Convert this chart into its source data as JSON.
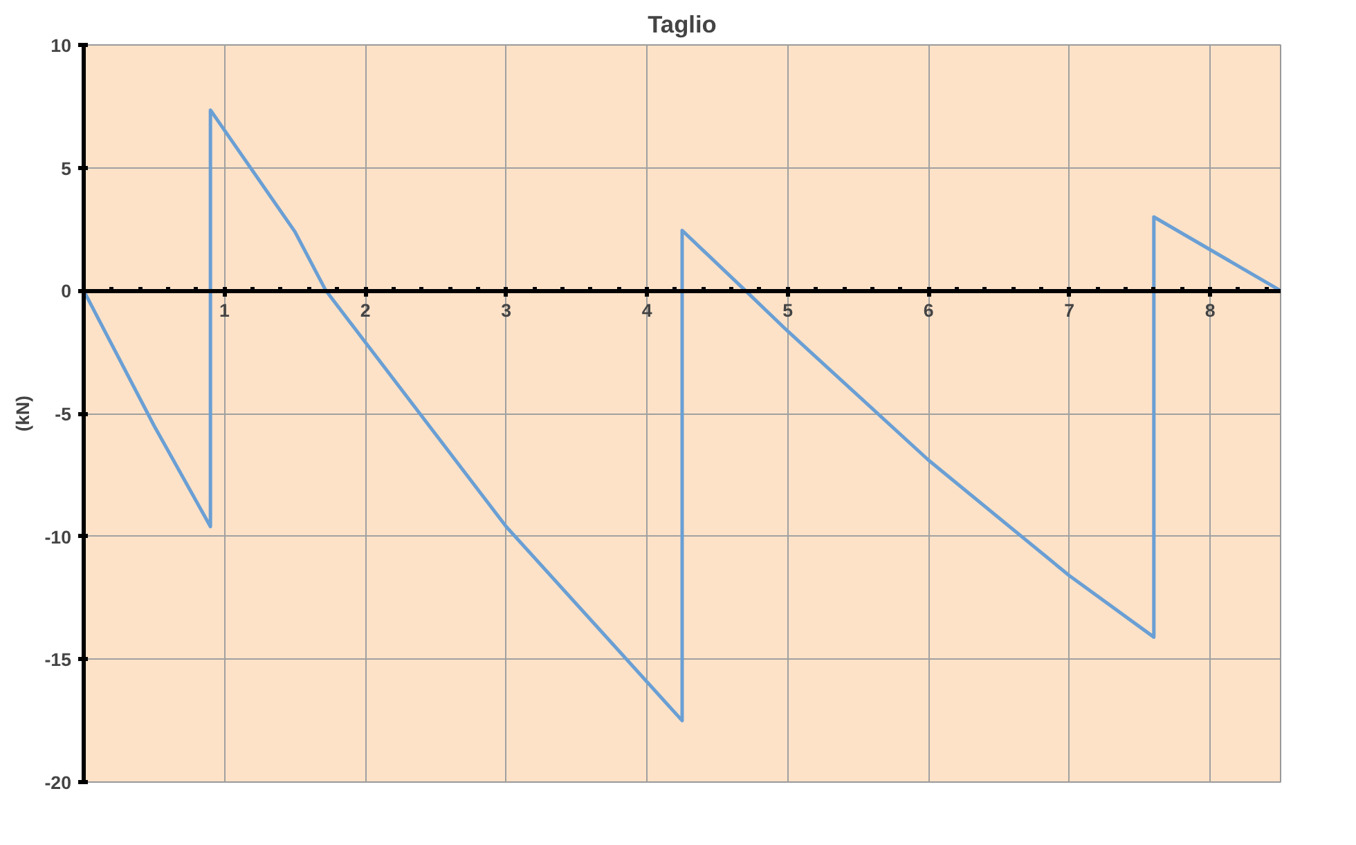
{
  "chart_data": {
    "type": "line",
    "title": "Taglio",
    "ylabel": "(kN)",
    "x": [
      0,
      0.5,
      0.9,
      0.9,
      1.5,
      1.72,
      2,
      3,
      4.25,
      4.25,
      4.7,
      5,
      6,
      7,
      7.6,
      7.6,
      8.5
    ],
    "series": [
      {
        "color": "#6a9fd4",
        "values": [
          0,
          -5.5,
          -9.6,
          7.35,
          2.4,
          0,
          -2.1,
          -9.6,
          -17.5,
          2.45,
          0,
          -1.65,
          -6.9,
          -11.6,
          -14.1,
          3.0,
          0
        ]
      }
    ],
    "xlim": [
      0,
      8.5
    ],
    "ylim": [
      -20,
      10
    ],
    "xticks": [
      {
        "value": 0,
        "label": null
      },
      {
        "value": 0.2,
        "label": null
      },
      {
        "value": 0.4,
        "label": null
      },
      {
        "value": 0.6,
        "label": null
      },
      {
        "value": 0.8,
        "label": null
      },
      1,
      {
        "value": 1.2,
        "label": null
      },
      {
        "value": 1.4,
        "label": null
      },
      {
        "value": 1.6,
        "label": null
      },
      {
        "value": 1.8,
        "label": null
      },
      2,
      {
        "value": 2.2,
        "label": null
      },
      {
        "value": 2.4,
        "label": null
      },
      {
        "value": 2.6,
        "label": null
      },
      {
        "value": 2.8,
        "label": null
      },
      3,
      {
        "value": 3.2,
        "label": null
      },
      {
        "value": 3.4,
        "label": null
      },
      {
        "value": 3.6,
        "label": null
      },
      {
        "value": 3.8,
        "label": null
      },
      4,
      {
        "value": 4.2,
        "label": null
      },
      {
        "value": 4.4,
        "label": null
      },
      {
        "value": 4.6,
        "label": null
      },
      {
        "value": 4.8,
        "label": null
      },
      5,
      {
        "value": 5.2,
        "label": null
      },
      {
        "value": 5.4,
        "label": null
      },
      {
        "value": 5.6,
        "label": null
      },
      {
        "value": 5.8,
        "label": null
      },
      6,
      {
        "value": 6.2,
        "label": null
      },
      {
        "value": 6.4,
        "label": null
      },
      {
        "value": 6.6,
        "label": null
      },
      {
        "value": 6.8,
        "label": null
      },
      7,
      {
        "value": 7.2,
        "label": null
      },
      {
        "value": 7.4,
        "label": null
      },
      {
        "value": 7.6,
        "label": null
      },
      {
        "value": 7.8,
        "label": null
      },
      8,
      {
        "value": 8.2,
        "label": null
      },
      {
        "value": 8.4,
        "label": null
      }
    ],
    "yticks": [
      -20,
      -15,
      -10,
      -5,
      0,
      5,
      10
    ],
    "grid": true,
    "marker": "none",
    "line_style": "solid"
  }
}
